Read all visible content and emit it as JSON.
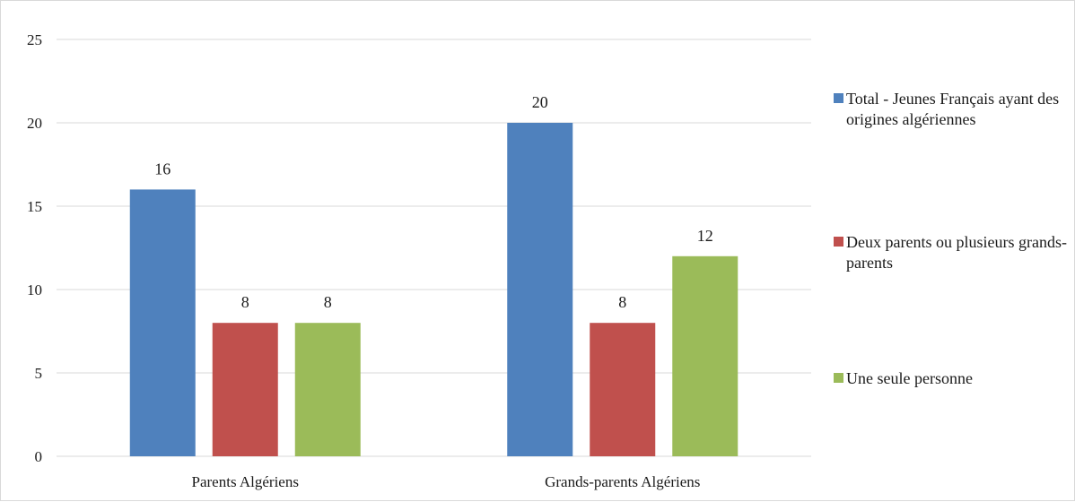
{
  "chart_data": {
    "type": "bar",
    "title": "",
    "xlabel": "",
    "ylabel": "",
    "categories": [
      "Parents Algériens",
      "Grands-parents Algériens"
    ],
    "series": [
      {
        "name": "Total - Jeunes Français ayant des origines algériennes",
        "values": [
          16,
          20
        ],
        "color": "#4f81bd"
      },
      {
        "name": "Deux parents ou plusieurs grands-parents",
        "values": [
          8,
          8
        ],
        "color": "#c0504d"
      },
      {
        "name": "Une seule personne",
        "values": [
          8,
          12
        ],
        "color": "#9bbb59"
      }
    ],
    "ylim": [
      0,
      25
    ],
    "yticks": [
      0,
      5,
      10,
      15,
      20,
      25
    ],
    "grid": true,
    "data_labels": true,
    "legend_position": "right",
    "gridline_color": "#d9d9d9"
  }
}
